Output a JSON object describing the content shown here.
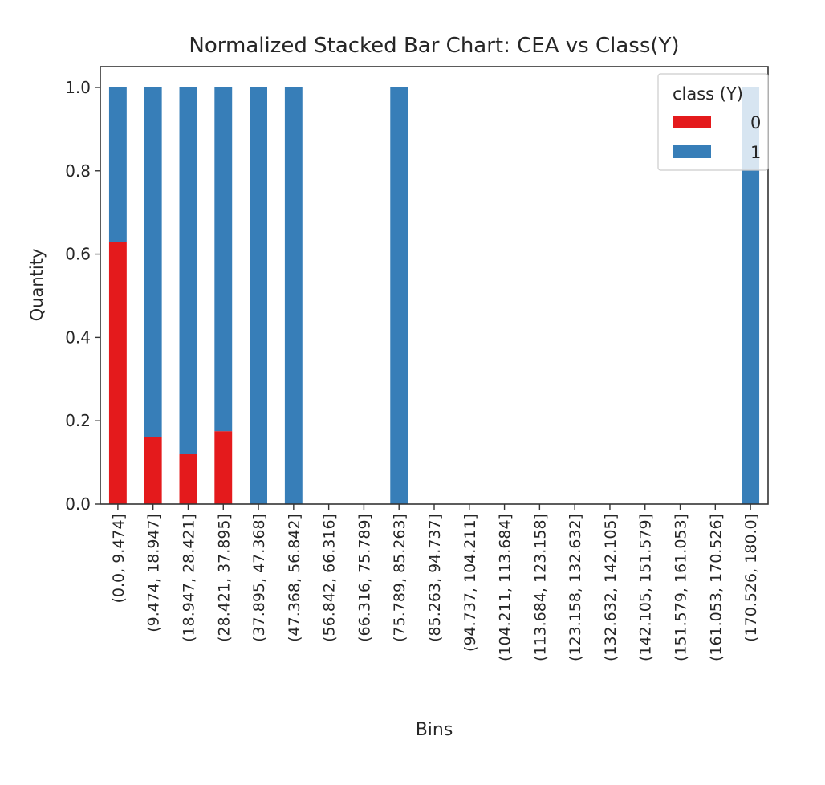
{
  "chart_data": {
    "type": "bar",
    "stacked": true,
    "title": "Normalized Stacked Bar Chart: CEA vs Class(Y)",
    "xlabel": "Bins",
    "ylabel": "Quantity",
    "ylim": [
      0,
      1.05
    ],
    "yticks": [
      "0.0",
      "0.2",
      "0.4",
      "0.6",
      "0.8",
      "1.0"
    ],
    "grid": false,
    "legend": {
      "title": "class (Y)",
      "placement": "top-right"
    },
    "categories": [
      "(0.0, 9.474]",
      "(9.474, 18.947]",
      "(18.947, 28.421]",
      "(28.421, 37.895]",
      "(37.895, 47.368]",
      "(47.368, 56.842]",
      "(56.842, 66.316]",
      "(66.316, 75.789]",
      "(75.789, 85.263]",
      "(85.263, 94.737]",
      "(94.737, 104.211]",
      "(104.211, 113.684]",
      "(113.684, 123.158]",
      "(123.158, 132.632]",
      "(132.632, 142.105]",
      "(142.105, 151.579]",
      "(151.579, 161.053]",
      "(161.053, 170.526]",
      "(170.526, 180.0]"
    ],
    "series": [
      {
        "name": "0",
        "color": "#e41a1c",
        "values": [
          0.63,
          0.16,
          0.12,
          0.175,
          0,
          0,
          0,
          0,
          0,
          0,
          0,
          0,
          0,
          0,
          0,
          0,
          0,
          0,
          0
        ]
      },
      {
        "name": "1",
        "color": "#377eb8",
        "values": [
          0.37,
          0.84,
          0.88,
          0.825,
          1.0,
          1.0,
          0,
          0,
          1.0,
          0,
          0,
          0,
          0,
          0,
          0,
          0,
          0,
          0,
          1.0
        ]
      }
    ]
  }
}
